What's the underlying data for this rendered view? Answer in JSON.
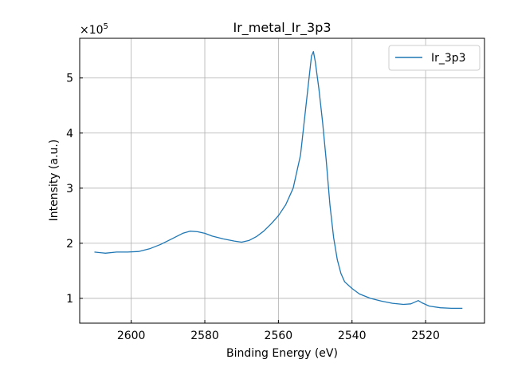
{
  "chart_data": {
    "type": "line",
    "title": "Ir_metal_Ir_3p3",
    "xlabel": "Binding Energy (eV)",
    "ylabel": "Intensity (a.u.)",
    "x_reversed": true,
    "xlim": [
      2614,
      2504
    ],
    "ylim": [
      0.55,
      5.72
    ],
    "y_multiplier_base": "×10",
    "y_multiplier_exp": "5",
    "x_ticks": [
      2600,
      2580,
      2560,
      2540,
      2520
    ],
    "y_ticks": [
      1,
      2,
      3,
      4,
      5
    ],
    "grid": true,
    "legend_position": "top-right",
    "line_color": "#1f77b4",
    "series": [
      {
        "name": "Ir_3p3",
        "points": [
          [
            2610,
            1.84
          ],
          [
            2607,
            1.82
          ],
          [
            2604,
            1.84
          ],
          [
            2601,
            1.84
          ],
          [
            2598,
            1.85
          ],
          [
            2595,
            1.9
          ],
          [
            2592,
            1.98
          ],
          [
            2589,
            2.08
          ],
          [
            2586,
            2.18
          ],
          [
            2584,
            2.22
          ],
          [
            2582,
            2.21
          ],
          [
            2580,
            2.18
          ],
          [
            2578,
            2.13
          ],
          [
            2575,
            2.08
          ],
          [
            2572,
            2.04
          ],
          [
            2570,
            2.02
          ],
          [
            2568,
            2.05
          ],
          [
            2566,
            2.12
          ],
          [
            2564,
            2.22
          ],
          [
            2562,
            2.35
          ],
          [
            2560,
            2.5
          ],
          [
            2558,
            2.7
          ],
          [
            2556,
            3.0
          ],
          [
            2554,
            3.6
          ],
          [
            2553,
            4.2
          ],
          [
            2552,
            4.8
          ],
          [
            2551,
            5.4
          ],
          [
            2550.5,
            5.48
          ],
          [
            2550,
            5.3
          ],
          [
            2549,
            4.8
          ],
          [
            2548,
            4.2
          ],
          [
            2547,
            3.5
          ],
          [
            2546,
            2.7
          ],
          [
            2545,
            2.1
          ],
          [
            2544,
            1.7
          ],
          [
            2543,
            1.45
          ],
          [
            2542,
            1.3
          ],
          [
            2540,
            1.18
          ],
          [
            2538,
            1.08
          ],
          [
            2535,
            1.0
          ],
          [
            2532,
            0.95
          ],
          [
            2529,
            0.91
          ],
          [
            2526,
            0.89
          ],
          [
            2524,
            0.9
          ],
          [
            2522,
            0.96
          ],
          [
            2521,
            0.92
          ],
          [
            2519,
            0.86
          ],
          [
            2516,
            0.83
          ],
          [
            2513,
            0.82
          ],
          [
            2510,
            0.82
          ]
        ]
      }
    ]
  }
}
